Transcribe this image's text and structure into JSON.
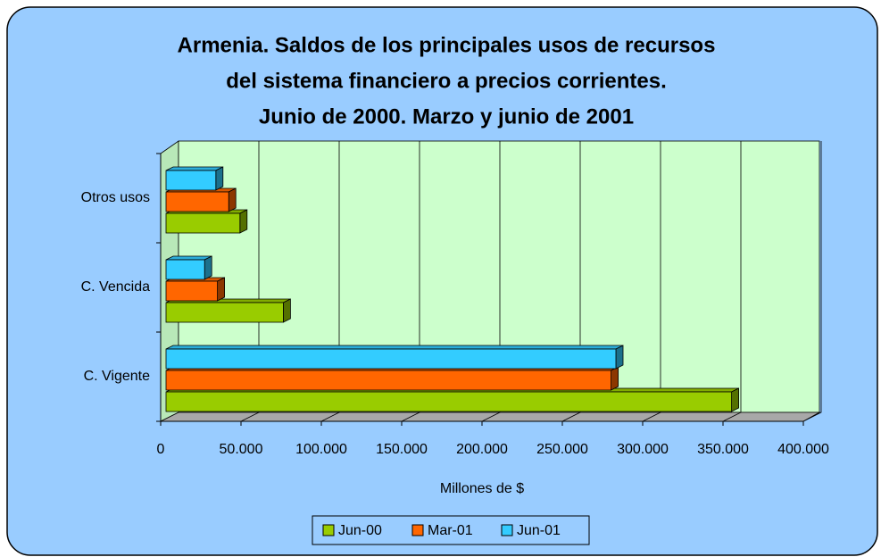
{
  "chart_data": {
    "type": "bar3d",
    "title": [
      "Armenia. Saldos de los principales usos de recursos",
      "del sistema financiero a precios corrientes.",
      "Junio de 2000. Marzo y junio de 2001"
    ],
    "x_label": "Millones de $",
    "categories": [
      "C. Vigente",
      "C. Vencida",
      "Otros usos"
    ],
    "series": [
      {
        "name": "Jun-00",
        "color": "#99cc00",
        "values": [
          352000,
          73000,
          46000
        ]
      },
      {
        "name": "Mar-01",
        "color": "#ff6600",
        "values": [
          277000,
          32000,
          39000
        ]
      },
      {
        "name": "Jun-01",
        "color": "#33ccff",
        "values": [
          280000,
          24000,
          31000
        ]
      }
    ],
    "xlim": [
      0,
      400000
    ],
    "xticks": [
      0,
      {
        "value": 50000,
        "label": "50.000"
      },
      {
        "value": 100000,
        "label": "100.000"
      },
      {
        "value": 150000,
        "label": "150.000"
      },
      {
        "value": 200000,
        "label": "200.000"
      },
      {
        "value": 250000,
        "label": "250.000"
      },
      {
        "value": 300000,
        "label": "300.000"
      },
      {
        "value": 350000,
        "label": "350.000"
      },
      {
        "value": 400000,
        "label": "400.000"
      }
    ],
    "grid": true,
    "legend": "bottom"
  }
}
